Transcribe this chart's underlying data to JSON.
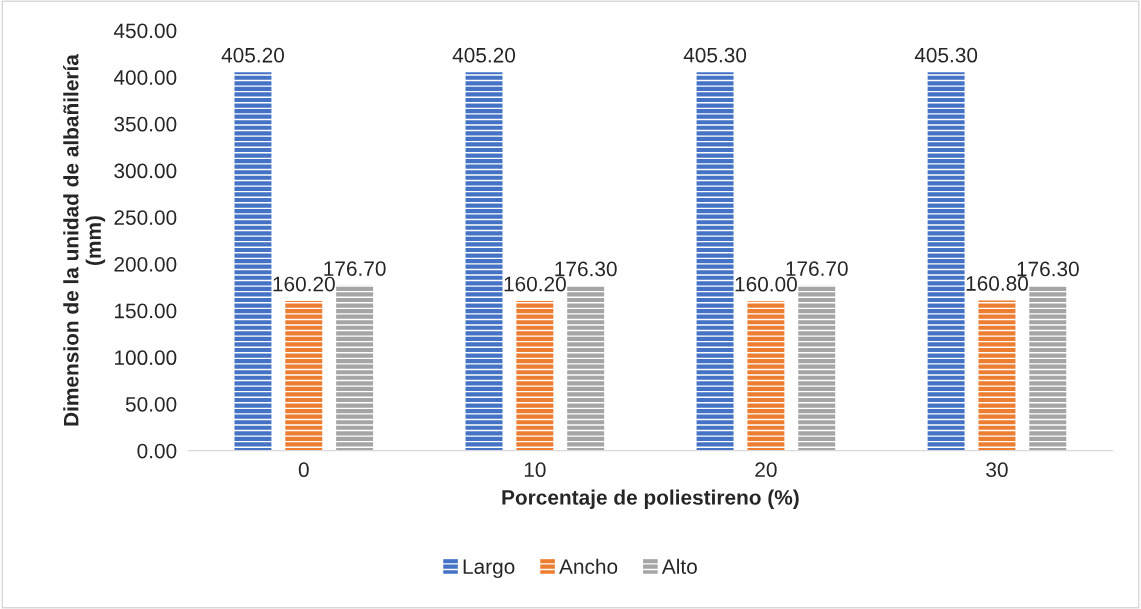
{
  "chart_data": {
    "type": "bar",
    "xlabel": "Porcentaje de poliestireno (%)",
    "ylabel": "Dimension de la unidad de albañilería\n(mm)",
    "categories": [
      "0",
      "10",
      "20",
      "30"
    ],
    "series": [
      {
        "name": "Largo",
        "color": "#4472c4",
        "values": [
          405.2,
          405.2,
          405.3,
          405.3
        ],
        "value_labels": [
          "405.20",
          "405.20",
          "405.30",
          "405.30"
        ]
      },
      {
        "name": "Ancho",
        "color": "#ed7d31",
        "values": [
          160.2,
          160.2,
          160.0,
          160.8
        ],
        "value_labels": [
          "160.20",
          "160.20",
          "160.00",
          "160.80"
        ]
      },
      {
        "name": "Alto",
        "color": "#a5a5a5",
        "values": [
          176.7,
          176.3,
          176.7,
          176.3
        ],
        "value_labels": [
          "176.70",
          "176.30",
          "176.70",
          "176.30"
        ]
      }
    ],
    "ylim": [
      0,
      450
    ],
    "yticks": [
      {
        "value": 0,
        "label": "0.00"
      },
      {
        "value": 50,
        "label": "50.00"
      },
      {
        "value": 100,
        "label": "100.00"
      },
      {
        "value": 150,
        "label": "150.00"
      },
      {
        "value": 200,
        "label": "200.00"
      },
      {
        "value": 250,
        "label": "250.00"
      },
      {
        "value": 300,
        "label": "300.00"
      },
      {
        "value": 350,
        "label": "350.00"
      },
      {
        "value": 400,
        "label": "400.00"
      },
      {
        "value": 450,
        "label": "450.00"
      }
    ],
    "grid": false,
    "legend": "bottom"
  }
}
